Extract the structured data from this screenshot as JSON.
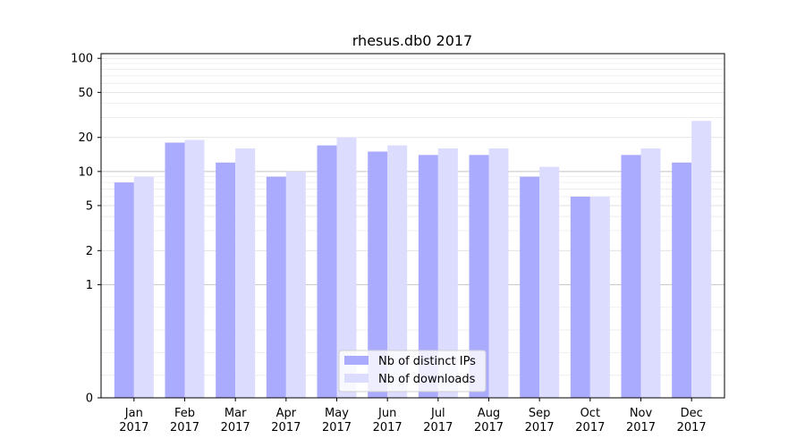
{
  "chart_data": {
    "type": "bar",
    "title": "rhesus.db0 2017",
    "xlabel": "",
    "ylabel": "",
    "yscale": "symlog",
    "ylim": [
      0,
      110
    ],
    "yticks": [
      0,
      1,
      2,
      5,
      10,
      20,
      50,
      100
    ],
    "ytick_labels": [
      "0",
      "1",
      "2",
      "5",
      "10",
      "20",
      "50",
      "100"
    ],
    "categories": [
      [
        "Jan",
        "2017"
      ],
      [
        "Feb",
        "2017"
      ],
      [
        "Mar",
        "2017"
      ],
      [
        "Apr",
        "2017"
      ],
      [
        "May",
        "2017"
      ],
      [
        "Jun",
        "2017"
      ],
      [
        "Jul",
        "2017"
      ],
      [
        "Aug",
        "2017"
      ],
      [
        "Sep",
        "2017"
      ],
      [
        "Oct",
        "2017"
      ],
      [
        "Nov",
        "2017"
      ],
      [
        "Dec",
        "2017"
      ]
    ],
    "series": [
      {
        "name": "Nb of distinct IPs",
        "color": "#aaaaff",
        "values": [
          8,
          18,
          12,
          9,
          17,
          15,
          14,
          14,
          9,
          6,
          14,
          12
        ]
      },
      {
        "name": "Nb of downloads",
        "color": "#dcdcff",
        "values": [
          9,
          19,
          16,
          10,
          20,
          17,
          16,
          16,
          11,
          6,
          16,
          28
        ]
      }
    ],
    "legend_position": "bottom-center",
    "grid": true
  }
}
